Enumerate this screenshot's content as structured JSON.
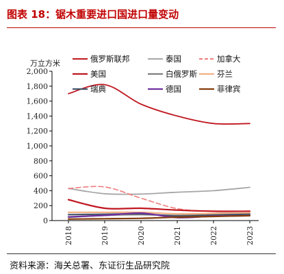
{
  "title": "图表 18：锯木重要进口国进口量变动",
  "source": "资料来源：海关总署、东证衍生品研究院",
  "chart_data": {
    "type": "line",
    "ylabel": "万立方米",
    "ylim": [
      0,
      2000
    ],
    "yticks": [
      0,
      200,
      400,
      600,
      800,
      1000,
      1200,
      1400,
      1600,
      1800,
      2000
    ],
    "ytick_labels": [
      "0",
      "200",
      "400",
      "600",
      "800",
      "1,000",
      "1,200",
      "1,400",
      "1,600",
      "1,800",
      "2,000"
    ],
    "x": [
      "2018",
      "2019",
      "2020",
      "2021",
      "2022",
      "2023"
    ],
    "legend_position": "top",
    "series": [
      {
        "name": "俄罗斯联邦",
        "color": "#c0161f",
        "dash": "solid",
        "width": 1.8,
        "values": [
          1700,
          1820,
          1560,
          1400,
          1300,
          1300
        ]
      },
      {
        "name": "泰国",
        "color": "#a6a6a6",
        "dash": "solid",
        "width": 1.8,
        "values": [
          430,
          360,
          355,
          380,
          400,
          445
        ]
      },
      {
        "name": "加拿大",
        "color": "#f07c7c",
        "dash": "dashed",
        "width": 1.6,
        "values": [
          430,
          450,
          300,
          160,
          125,
          125
        ]
      },
      {
        "name": "美国",
        "color": "#c0161f",
        "dash": "solid",
        "width": 2.2,
        "values": [
          280,
          165,
          165,
          140,
          125,
          125
        ]
      },
      {
        "name": "白俄罗斯",
        "color": "#7f7f7f",
        "dash": "solid",
        "width": 2.2,
        "values": [
          45,
          70,
          80,
          70,
          95,
          100
        ]
      },
      {
        "name": "芬兰",
        "color": "#f4b183",
        "dash": "solid",
        "width": 2.2,
        "values": [
          110,
          110,
          110,
          90,
          95,
          100
        ]
      },
      {
        "name": "瑞典",
        "color": "#44546a",
        "dash": "solid",
        "width": 2.2,
        "values": [
          80,
          85,
          90,
          60,
          75,
          85
        ]
      },
      {
        "name": "德国",
        "color": "#7030a0",
        "dash": "solid",
        "width": 2.2,
        "values": [
          50,
          70,
          100,
          40,
          60,
          65
        ]
      },
      {
        "name": "菲律宾",
        "color": "#843c0c",
        "dash": "solid",
        "width": 2.2,
        "values": [
          20,
          25,
          30,
          45,
          55,
          65
        ]
      }
    ]
  }
}
